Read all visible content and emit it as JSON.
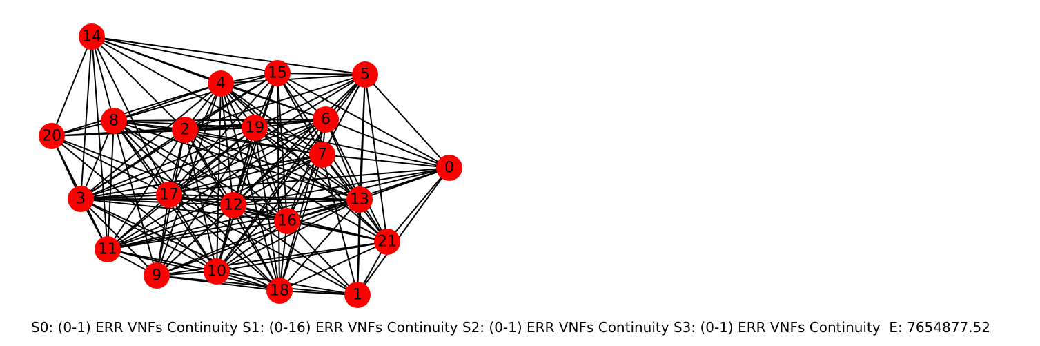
{
  "graph": {
    "node_color": "#ff0000",
    "edge_color": "#000000",
    "nodes": [
      "0",
      "1",
      "2",
      "3",
      "4",
      "5",
      "6",
      "7",
      "8",
      "9",
      "10",
      "11",
      "12",
      "13",
      "14",
      "15",
      "16",
      "17",
      "18",
      "19",
      "20",
      "21"
    ]
  },
  "caption": "S0: (0-1) ERR VNFs Continuity S1: (0-16) ERR VNFs Continuity S2: (0-1) ERR VNFs Continuity S3: (0-1) ERR VNFs Continuity  E: 7654877.52"
}
